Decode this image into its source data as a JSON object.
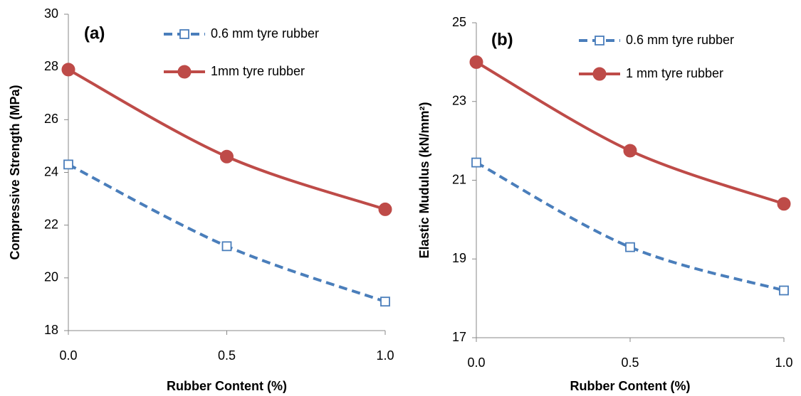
{
  "chart_data": [
    {
      "type": "line",
      "annotation": "(a)",
      "x_label": "Rubber Content (%)",
      "y_label": "Compressive Strength (MPa)",
      "x": [
        0,
        0.5,
        1
      ],
      "xlim": [
        0,
        1
      ],
      "xticks": [
        {
          "value": 0,
          "label": "0.0"
        },
        {
          "value": 0.5,
          "label": "0.5"
        },
        {
          "value": 1,
          "label": "1.0"
        }
      ],
      "ylim": [
        18,
        30
      ],
      "yticks": [
        18,
        20,
        22,
        24,
        26,
        28,
        30
      ],
      "series": [
        {
          "name": "0.6 mm tyre rubber",
          "color": "#4a7ebb",
          "marker": "square",
          "linestyle": "dashed",
          "values": [
            24.3,
            21.2,
            19.1
          ]
        },
        {
          "name": "1mm tyre rubber",
          "color": "#be4b48",
          "marker": "circle",
          "linestyle": "solid",
          "values": [
            27.9,
            24.6,
            22.6
          ]
        }
      ]
    },
    {
      "type": "line",
      "annotation": "(b)",
      "x_label": "Rubber Content (%)",
      "y_label": "Elastic Mudulus  (kN/mm²)",
      "x": [
        0,
        0.5,
        1
      ],
      "xlim": [
        0,
        1
      ],
      "xticks": [
        {
          "value": 0,
          "label": "0.0"
        },
        {
          "value": 0.5,
          "label": "0.5"
        },
        {
          "value": 1,
          "label": "1.0"
        }
      ],
      "ylim": [
        17,
        25
      ],
      "yticks": [
        17,
        19,
        21,
        23,
        25
      ],
      "series": [
        {
          "name": "0.6 mm tyre rubber",
          "color": "#4a7ebb",
          "marker": "square",
          "linestyle": "dashed",
          "values": [
            21.45,
            19.3,
            18.2
          ]
        },
        {
          "name": "1 mm tyre rubber",
          "color": "#be4b48",
          "marker": "circle",
          "linestyle": "solid",
          "values": [
            24.0,
            21.75,
            20.4
          ]
        }
      ]
    }
  ]
}
